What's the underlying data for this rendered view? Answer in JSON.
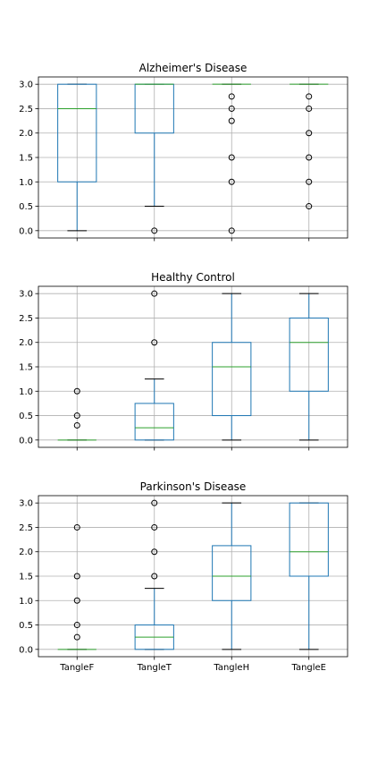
{
  "chart_data": [
    {
      "type": "boxplot",
      "title": "Alzheimer's Disease",
      "categories": [
        "TangleF",
        "TangleT",
        "TangleH",
        "TangleE"
      ],
      "ylim": [
        -0.15,
        3.15
      ],
      "yticks": [
        "0.0",
        "0.5",
        "1.0",
        "1.5",
        "2.0",
        "2.5",
        "3.0"
      ],
      "show_xticklabels": false,
      "grid": true,
      "boxes": [
        {
          "whislo": 0.0,
          "q1": 1.0,
          "med": 2.5,
          "q3": 3.0,
          "whishi": 3.0,
          "fliers": []
        },
        {
          "whislo": 0.5,
          "q1": 2.0,
          "med": 3.0,
          "q3": 3.0,
          "whishi": 3.0,
          "fliers": [
            0.0
          ]
        },
        {
          "whislo": 3.0,
          "q1": 3.0,
          "med": 3.0,
          "q3": 3.0,
          "whishi": 3.0,
          "fliers": [
            0.0,
            1.0,
            1.5,
            2.25,
            2.5,
            2.75
          ]
        },
        {
          "whislo": 3.0,
          "q1": 3.0,
          "med": 3.0,
          "q3": 3.0,
          "whishi": 3.0,
          "fliers": [
            0.5,
            1.0,
            1.5,
            2.0,
            2.5,
            2.75
          ]
        }
      ]
    },
    {
      "type": "boxplot",
      "title": "Healthy Control",
      "categories": [
        "TangleF",
        "TangleT",
        "TangleH",
        "TangleE"
      ],
      "ylim": [
        -0.15,
        3.15
      ],
      "yticks": [
        "0.0",
        "0.5",
        "1.0",
        "1.5",
        "2.0",
        "2.5",
        "3.0"
      ],
      "show_xticklabels": false,
      "grid": true,
      "boxes": [
        {
          "whislo": 0.0,
          "q1": 0.0,
          "med": 0.0,
          "q3": 0.0,
          "whishi": 0.0,
          "fliers": [
            0.3,
            0.5,
            1.0
          ]
        },
        {
          "whislo": 0.0,
          "q1": 0.0,
          "med": 0.25,
          "q3": 0.75,
          "whishi": 1.25,
          "fliers": [
            2.0,
            3.0
          ]
        },
        {
          "whislo": 0.0,
          "q1": 0.5,
          "med": 1.5,
          "q3": 2.0,
          "whishi": 3.0,
          "fliers": []
        },
        {
          "whislo": 0.0,
          "q1": 1.0,
          "med": 2.0,
          "q3": 2.5,
          "whishi": 3.0,
          "fliers": []
        }
      ]
    },
    {
      "type": "boxplot",
      "title": "Parkinson's Disease",
      "categories": [
        "TangleF",
        "TangleT",
        "TangleH",
        "TangleE"
      ],
      "ylim": [
        -0.15,
        3.15
      ],
      "yticks": [
        "0.0",
        "0.5",
        "1.0",
        "1.5",
        "2.0",
        "2.5",
        "3.0"
      ],
      "show_xticklabels": true,
      "grid": true,
      "boxes": [
        {
          "whislo": 0.0,
          "q1": 0.0,
          "med": 0.0,
          "q3": 0.0,
          "whishi": 0.0,
          "fliers": [
            0.25,
            0.5,
            1.0,
            1.5,
            2.5
          ]
        },
        {
          "whislo": 0.0,
          "q1": 0.0,
          "med": 0.25,
          "q3": 0.5,
          "whishi": 1.25,
          "fliers": [
            1.5,
            2.0,
            2.5,
            3.0
          ]
        },
        {
          "whislo": 0.0,
          "q1": 1.0,
          "med": 1.5,
          "q3": 2.125,
          "whishi": 3.0,
          "fliers": []
        },
        {
          "whislo": 0.0,
          "q1": 1.5,
          "med": 2.0,
          "q3": 3.0,
          "whishi": 3.0,
          "fliers": []
        }
      ]
    }
  ],
  "colors": {
    "box": "#1f77b4",
    "median": "#2ca02c",
    "grid": "#b0b0b0",
    "axis": "#000000",
    "flier": "#000000"
  }
}
